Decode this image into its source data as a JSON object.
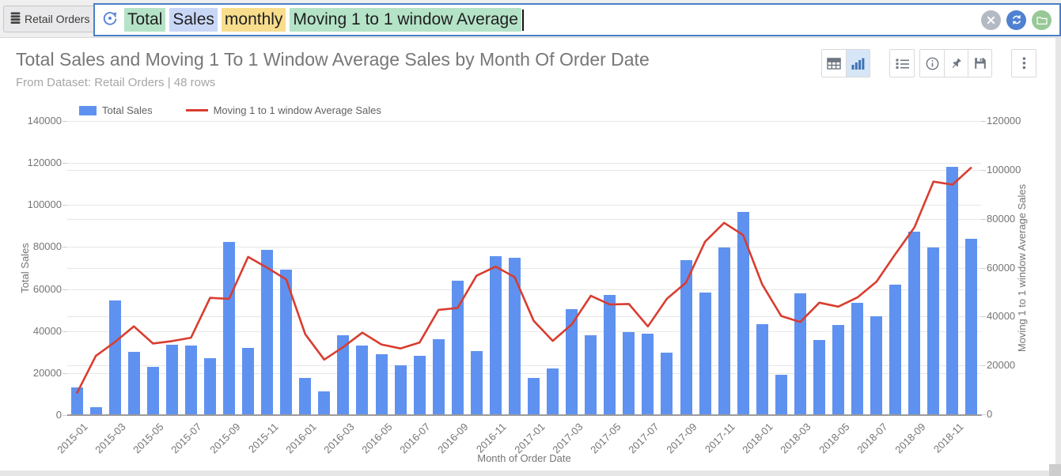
{
  "header": {
    "dataset_button": {
      "label": "Retail Orders",
      "icon": "database-icon"
    },
    "search": {
      "tokens": [
        {
          "text": "Total",
          "highlight": "green"
        },
        {
          "text": "Sales",
          "highlight": "blue"
        },
        {
          "text": "monthly",
          "highlight": "orange"
        },
        {
          "text": "Moving 1 to 1 window Average",
          "highlight": "green"
        }
      ],
      "action_buttons": [
        "clear",
        "refresh",
        "open-folder"
      ]
    }
  },
  "card": {
    "title": "Total Sales and Moving 1 To 1 Window Average Sales by Month Of Order Date",
    "subtitle": "From Dataset: Retail Orders | 48 rows",
    "toolbar": [
      "table-view",
      "chart-view",
      "list-options",
      "info",
      "pin",
      "save",
      "more-options"
    ],
    "active_toolbar_item": "chart-view"
  },
  "chart_data": {
    "type": "bar",
    "title": "Total Sales and Moving 1 To 1 Window Average Sales by Month Of Order Date",
    "xlabel": "Month of Order Date",
    "x_tick_every": 2,
    "grid": true,
    "legend_position": "top-left",
    "categories": [
      "2015-01",
      "2015-02",
      "2015-03",
      "2015-04",
      "2015-05",
      "2015-06",
      "2015-07",
      "2015-08",
      "2015-09",
      "2015-10",
      "2015-11",
      "2015-12",
      "2016-01",
      "2016-02",
      "2016-03",
      "2016-04",
      "2016-05",
      "2016-06",
      "2016-07",
      "2016-08",
      "2016-09",
      "2016-10",
      "2016-11",
      "2016-12",
      "2017-01",
      "2017-02",
      "2017-03",
      "2017-04",
      "2017-05",
      "2017-06",
      "2017-07",
      "2017-08",
      "2017-09",
      "2017-10",
      "2017-11",
      "2017-12",
      "2018-01",
      "2018-02",
      "2018-03",
      "2018-04",
      "2018-05",
      "2018-06",
      "2018-07",
      "2018-08",
      "2018-09",
      "2018-10",
      "2018-11",
      "2018-12"
    ],
    "left_axis": {
      "label": "Total Sales",
      "min": 0,
      "max": 140000,
      "step": 20000
    },
    "right_axis": {
      "label": "Moving 1 to 1 window Average Sales",
      "min": 0,
      "max": 120000,
      "step": 20000
    },
    "series": [
      {
        "name": "Total Sales",
        "type": "bar",
        "axis": "left",
        "color": "#5f92f0",
        "values": [
          13200,
          3800,
          54700,
          30200,
          23100,
          33600,
          33200,
          27200,
          82500,
          32000,
          78700,
          69200,
          17700,
          11400,
          38000,
          33300,
          28900,
          23600,
          28300,
          36100,
          63800,
          30600,
          75700,
          75000,
          17700,
          22100,
          50300,
          38000,
          57200,
          39600,
          38700,
          29600,
          73700,
          58300,
          79800,
          96900,
          43400,
          19200,
          58100,
          35900,
          43000,
          53300,
          47100,
          62200,
          87500,
          79800,
          118300,
          83800
        ]
      },
      {
        "name": "Moving 1 to 1 window Average Sales",
        "type": "line",
        "axis": "right",
        "color": "#d93d30",
        "derivation": "centered moving average, window 1 before / 1 after",
        "values": [
          8500,
          23900,
          29567,
          36000,
          28967,
          29967,
          31333,
          47633,
          47233,
          64400,
          59967,
          55200,
          32767,
          22367,
          27567,
          33400,
          28600,
          26933,
          29333,
          42733,
          43500,
          56700,
          60433,
          56133,
          38267,
          30033,
          36800,
          48500,
          44933,
          45167,
          35967,
          47333,
          53867,
          70600,
          78333,
          73367,
          53167,
          40233,
          37733,
          45667,
          44067,
          47800,
          54200,
          65600,
          76500,
          95200,
          93967,
          101050
        ]
      }
    ]
  },
  "colors": {
    "bar": "#5f92f0",
    "line": "#d93d30",
    "token_green": "#b5e3c8",
    "token_blue": "#c9d7f7",
    "token_orange": "#f8dd8d",
    "active_tool_bg": "#d7e6f7",
    "active_tool_icon": "#3f74b5",
    "circle_gray": "#b4bac3",
    "circle_blue": "#4f80d1",
    "circle_green": "#98c896"
  }
}
